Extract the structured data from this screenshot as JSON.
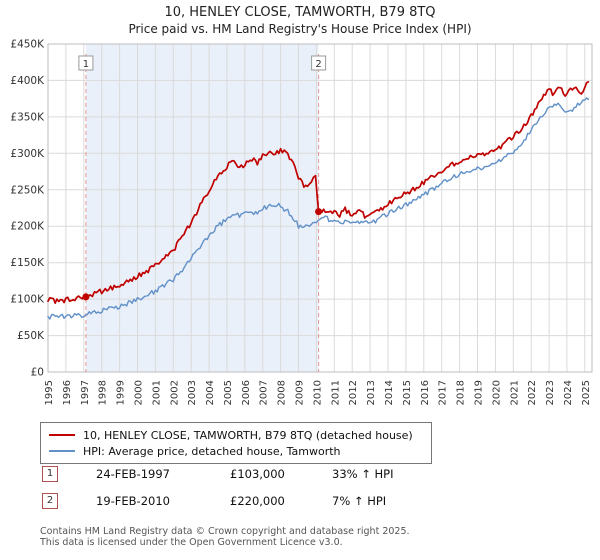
{
  "title": "10, HENLEY CLOSE, TAMWORTH, B79 8TQ",
  "subtitle": "Price paid vs. HM Land Registry's House Price Index (HPI)",
  "chart_data": {
    "type": "line",
    "x_range": [
      1995,
      2025.4
    ],
    "y_range": [
      0,
      450000
    ],
    "y_ticks": [
      "£0",
      "£50K",
      "£100K",
      "£150K",
      "£200K",
      "£250K",
      "£300K",
      "£350K",
      "£400K",
      "£450K"
    ],
    "y_tick_values": [
      0,
      50000,
      100000,
      150000,
      200000,
      250000,
      300000,
      350000,
      400000,
      450000
    ],
    "x_ticks": [
      1995,
      1996,
      1997,
      1998,
      1999,
      2000,
      2001,
      2002,
      2003,
      2004,
      2005,
      2006,
      2007,
      2008,
      2009,
      2010,
      2011,
      2012,
      2013,
      2014,
      2015,
      2016,
      2017,
      2018,
      2019,
      2020,
      2021,
      2022,
      2023,
      2024,
      2025
    ],
    "grid": true,
    "legend_position": "bottom",
    "shaded_region": {
      "from": 1997.12,
      "to": 2010.12,
      "color": "#eaf0f9"
    },
    "series": [
      {
        "name": "10, HENLEY CLOSE, TAMWORTH, B79 8TQ (detached house)",
        "color": "#c00000",
        "points": [
          [
            1995.0,
            100000
          ],
          [
            1995.5,
            97000
          ],
          [
            1996.0,
            99000
          ],
          [
            1996.5,
            101000
          ],
          [
            1997.12,
            103000
          ],
          [
            1997.6,
            107000
          ],
          [
            1998.0,
            111000
          ],
          [
            1998.5,
            115000
          ],
          [
            1999.0,
            120000
          ],
          [
            1999.5,
            125000
          ],
          [
            2000.0,
            131000
          ],
          [
            2000.5,
            138000
          ],
          [
            2001.0,
            146000
          ],
          [
            2001.5,
            155000
          ],
          [
            2002.0,
            167000
          ],
          [
            2002.5,
            185000
          ],
          [
            2003.0,
            205000
          ],
          [
            2003.5,
            228000
          ],
          [
            2004.0,
            250000
          ],
          [
            2004.5,
            268000
          ],
          [
            2005.0,
            282000
          ],
          [
            2005.3,
            290000
          ],
          [
            2005.6,
            280000
          ],
          [
            2006.0,
            285000
          ],
          [
            2006.4,
            293000
          ],
          [
            2006.7,
            287000
          ],
          [
            2007.0,
            297000
          ],
          [
            2007.4,
            303000
          ],
          [
            2007.7,
            298000
          ],
          [
            2008.0,
            305000
          ],
          [
            2008.3,
            300000
          ],
          [
            2008.6,
            290000
          ],
          [
            2009.0,
            268000
          ],
          [
            2009.3,
            255000
          ],
          [
            2009.6,
            258000
          ],
          [
            2009.95,
            268000
          ],
          [
            2010.12,
            220000
          ],
          [
            2010.4,
            223000
          ],
          [
            2010.7,
            218000
          ],
          [
            2011.0,
            222000
          ],
          [
            2011.3,
            215000
          ],
          [
            2011.6,
            223000
          ],
          [
            2012.0,
            214000
          ],
          [
            2012.4,
            220000
          ],
          [
            2012.8,
            213000
          ],
          [
            2013.0,
            215000
          ],
          [
            2013.5,
            221000
          ],
          [
            2014.0,
            230000
          ],
          [
            2014.5,
            239000
          ],
          [
            2015.0,
            246000
          ],
          [
            2015.5,
            251000
          ],
          [
            2016.0,
            260000
          ],
          [
            2016.5,
            268000
          ],
          [
            2017.0,
            276000
          ],
          [
            2017.5,
            283000
          ],
          [
            2018.0,
            289000
          ],
          [
            2018.5,
            294000
          ],
          [
            2019.0,
            297000
          ],
          [
            2019.5,
            300000
          ],
          [
            2020.0,
            303000
          ],
          [
            2020.5,
            313000
          ],
          [
            2021.0,
            323000
          ],
          [
            2021.5,
            334000
          ],
          [
            2022.0,
            352000
          ],
          [
            2022.5,
            372000
          ],
          [
            2023.0,
            388000
          ],
          [
            2023.3,
            380000
          ],
          [
            2023.6,
            393000
          ],
          [
            2023.9,
            378000
          ],
          [
            2024.2,
            386000
          ],
          [
            2024.5,
            392000
          ],
          [
            2024.7,
            380000
          ],
          [
            2025.0,
            390000
          ],
          [
            2025.2,
            398000
          ]
        ]
      },
      {
        "name": "HPI: Average price, detached house, Tamworth",
        "color": "#6090c8",
        "points": [
          [
            1995.0,
            76000
          ],
          [
            1995.5,
            75000
          ],
          [
            1996.0,
            77000
          ],
          [
            1996.5,
            77500
          ],
          [
            1997.0,
            78000
          ],
          [
            1997.5,
            81000
          ],
          [
            1998.0,
            84000
          ],
          [
            1998.5,
            87000
          ],
          [
            1999.0,
            90000
          ],
          [
            1999.5,
            95000
          ],
          [
            2000.0,
            100000
          ],
          [
            2000.5,
            105000
          ],
          [
            2001.0,
            111000
          ],
          [
            2001.5,
            118000
          ],
          [
            2002.0,
            127000
          ],
          [
            2002.5,
            140000
          ],
          [
            2003.0,
            155000
          ],
          [
            2003.5,
            172000
          ],
          [
            2004.0,
            188000
          ],
          [
            2004.5,
            200000
          ],
          [
            2005.0,
            210000
          ],
          [
            2005.5,
            214000
          ],
          [
            2006.0,
            218000
          ],
          [
            2006.5,
            216000
          ],
          [
            2007.0,
            224000
          ],
          [
            2007.4,
            228000
          ],
          [
            2007.8,
            230000
          ],
          [
            2008.0,
            228000
          ],
          [
            2008.4,
            220000
          ],
          [
            2008.8,
            208000
          ],
          [
            2009.0,
            200000
          ],
          [
            2009.3,
            197000
          ],
          [
            2009.6,
            202000
          ],
          [
            2010.0,
            207000
          ],
          [
            2010.4,
            212000
          ],
          [
            2010.8,
            208000
          ],
          [
            2011.0,
            210000
          ],
          [
            2011.4,
            204000
          ],
          [
            2011.8,
            208000
          ],
          [
            2012.0,
            203000
          ],
          [
            2012.5,
            207000
          ],
          [
            2013.0,
            203000
          ],
          [
            2013.5,
            210000
          ],
          [
            2014.0,
            217000
          ],
          [
            2014.5,
            224000
          ],
          [
            2015.0,
            230000
          ],
          [
            2015.5,
            236000
          ],
          [
            2016.0,
            243000
          ],
          [
            2016.5,
            251000
          ],
          [
            2017.0,
            258000
          ],
          [
            2017.5,
            265000
          ],
          [
            2018.0,
            271000
          ],
          [
            2018.5,
            276000
          ],
          [
            2019.0,
            279000
          ],
          [
            2019.5,
            282000
          ],
          [
            2020.0,
            286000
          ],
          [
            2020.5,
            294000
          ],
          [
            2021.0,
            303000
          ],
          [
            2021.5,
            314000
          ],
          [
            2022.0,
            333000
          ],
          [
            2022.5,
            349000
          ],
          [
            2023.0,
            362000
          ],
          [
            2023.5,
            368000
          ],
          [
            2024.0,
            355000
          ],
          [
            2024.4,
            362000
          ],
          [
            2024.7,
            368000
          ],
          [
            2025.0,
            372000
          ],
          [
            2025.2,
            374000
          ]
        ]
      }
    ],
    "markers": [
      {
        "label": "1",
        "x": 1997.12,
        "y": 103000
      },
      {
        "label": "2",
        "x": 2010.12,
        "y": 220000
      }
    ]
  },
  "annotations": [
    {
      "num": "1",
      "date": "24-FEB-1997",
      "price": "£103,000",
      "hpi": "33% ↑ HPI"
    },
    {
      "num": "2",
      "date": "19-FEB-2010",
      "price": "£220,000",
      "hpi": "7% ↑ HPI"
    }
  ],
  "footer": {
    "line1": "Contains HM Land Registry data © Crown copyright and database right 2025.",
    "line2": "This data is licensed under the Open Government Licence v3.0."
  }
}
